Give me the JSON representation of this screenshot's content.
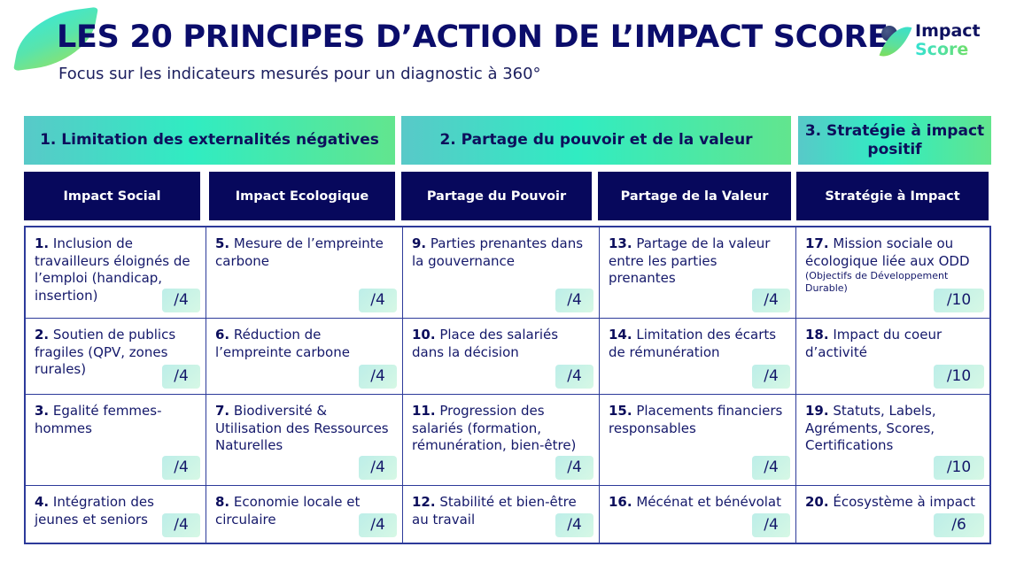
{
  "header": {
    "title": "LES 20 PRINCIPES D’ACTION DE L’IMPACT SCORE",
    "subtitle": "Focus sur les indicateurs mesurés pour un diagnostic à 360°",
    "logo": {
      "line1": "Impact",
      "line2": "Score",
      "icon": "leaf-icon"
    }
  },
  "colors": {
    "navy": "#07085c",
    "gradient_start": "#58c9c8",
    "gradient_mid": "#30ecc2",
    "gradient_end": "#62e58e",
    "border": "#2d3a9a"
  },
  "sections": [
    {
      "label": "1. Limitation des externalités négatives"
    },
    {
      "label": "2. Partage du pouvoir et de la valeur"
    },
    {
      "label": "3. Stratégie à impact positif"
    }
  ],
  "categories": [
    {
      "label": "Impact Social"
    },
    {
      "label": "Impact Ecologique"
    },
    {
      "label": "Partage du Pouvoir"
    },
    {
      "label": "Partage de la Valeur"
    },
    {
      "label": "Stratégie à Impact"
    }
  ],
  "principles": [
    {
      "num": "1.",
      "text": " Inclusion de travailleurs éloignés de l’emploi (handicap, insertion)",
      "score": "/4"
    },
    {
      "num": "5.",
      "text": " Mesure de l’empreinte carbone",
      "score": "/4"
    },
    {
      "num": "9.",
      "text": " Parties prenantes dans la gouvernance",
      "score": "/4"
    },
    {
      "num": "13.",
      "text": " Partage de la valeur entre les parties prenantes",
      "score": "/4"
    },
    {
      "num": "17.",
      "text": " Mission sociale ou écologique liée aux ODD",
      "note": "(Objectifs de Développement Durable)",
      "score": "/10"
    },
    {
      "num": "2.",
      "text": " Soutien de publics fragiles (QPV, zones rurales)",
      "score": "/4"
    },
    {
      "num": "6.",
      "text": " Réduction de l’empreinte carbone",
      "score": "/4"
    },
    {
      "num": "10.",
      "text": " Place des salariés dans la décision",
      "score": "/4"
    },
    {
      "num": "14.",
      "text": " Limitation des écarts de rémunération",
      "score": "/4"
    },
    {
      "num": "18.",
      "text": " Impact du coeur d’activité",
      "score": "/10"
    },
    {
      "num": "3.",
      "text": " Egalité femmes-hommes",
      "score": "/4"
    },
    {
      "num": "7.",
      "text": " Biodiversité & Utilisation des Ressources Naturelles",
      "score": "/4"
    },
    {
      "num": "11.",
      "text": " Progression des salariés (formation, rémunération, bien-être)",
      "score": "/4"
    },
    {
      "num": "15.",
      "text": " Placements financiers responsables",
      "score": "/4"
    },
    {
      "num": "19.",
      "text": "  Statuts, Labels, Agréments, Scores, Certifications",
      "score": "/10"
    },
    {
      "num": "4.",
      "text": " Intégration des jeunes et seniors",
      "score": "/4"
    },
    {
      "num": "8.",
      "text": " Economie locale et circulaire",
      "score": "/4"
    },
    {
      "num": "12.",
      "text": " Stabilité et bien-être au travail",
      "score": "/4"
    },
    {
      "num": "16.",
      "text": " Mécénat et bénévolat",
      "score": "/4"
    },
    {
      "num": "20.",
      "text": " Écosystème à impact",
      "score": "/6"
    }
  ]
}
